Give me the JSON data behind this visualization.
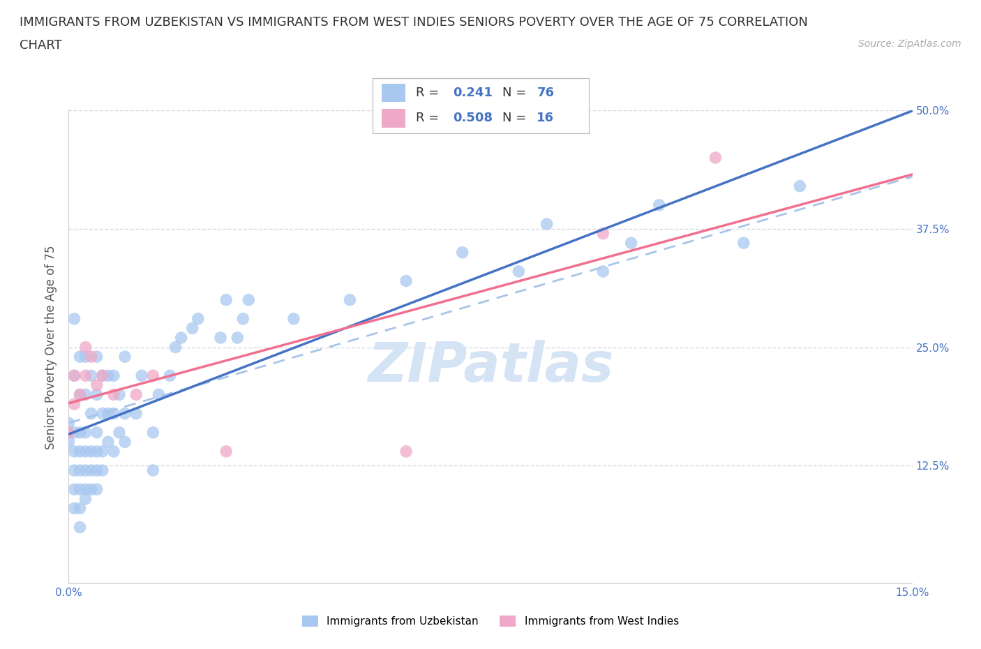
{
  "title_line1": "IMMIGRANTS FROM UZBEKISTAN VS IMMIGRANTS FROM WEST INDIES SENIORS POVERTY OVER THE AGE OF 75 CORRELATION",
  "title_line2": "CHART",
  "source_text": "Source: ZipAtlas.com",
  "ylabel": "Seniors Poverty Over the Age of 75",
  "xlim": [
    0.0,
    0.15
  ],
  "ylim": [
    0.0,
    0.5
  ],
  "xtick_positions": [
    0.0,
    0.025,
    0.05,
    0.075,
    0.1,
    0.125,
    0.15
  ],
  "xticklabels": [
    "0.0%",
    "",
    "",
    "",
    "",
    "",
    "15.0%"
  ],
  "ytick_positions": [
    0.0,
    0.125,
    0.25,
    0.375,
    0.5
  ],
  "yticklabels_right": [
    "",
    "12.5%",
    "25.0%",
    "37.5%",
    "50.0%"
  ],
  "R_uzbekistan": 0.241,
  "N_uzbekistan": 76,
  "R_westindies": 0.508,
  "N_westindies": 16,
  "color_uzbekistan": "#a8c8f0",
  "color_westindies": "#f0a8c8",
  "line_color_uzbekistan": "#4472c4",
  "line_color_westindies": "#f07090",
  "line_color_dashed": "#a8c4e8",
  "watermark": "ZIPatlas",
  "background_color": "#ffffff",
  "grid_color": "#d8d8e8",
  "title_fontsize": 13,
  "axis_label_fontsize": 12,
  "tick_fontsize": 11,
  "source_text_color": "#aaaaaa",
  "legend_box_color": "#4472c4",
  "legend_R_val_color": "#4472c4",
  "legend_N_val_color": "#4472c4"
}
